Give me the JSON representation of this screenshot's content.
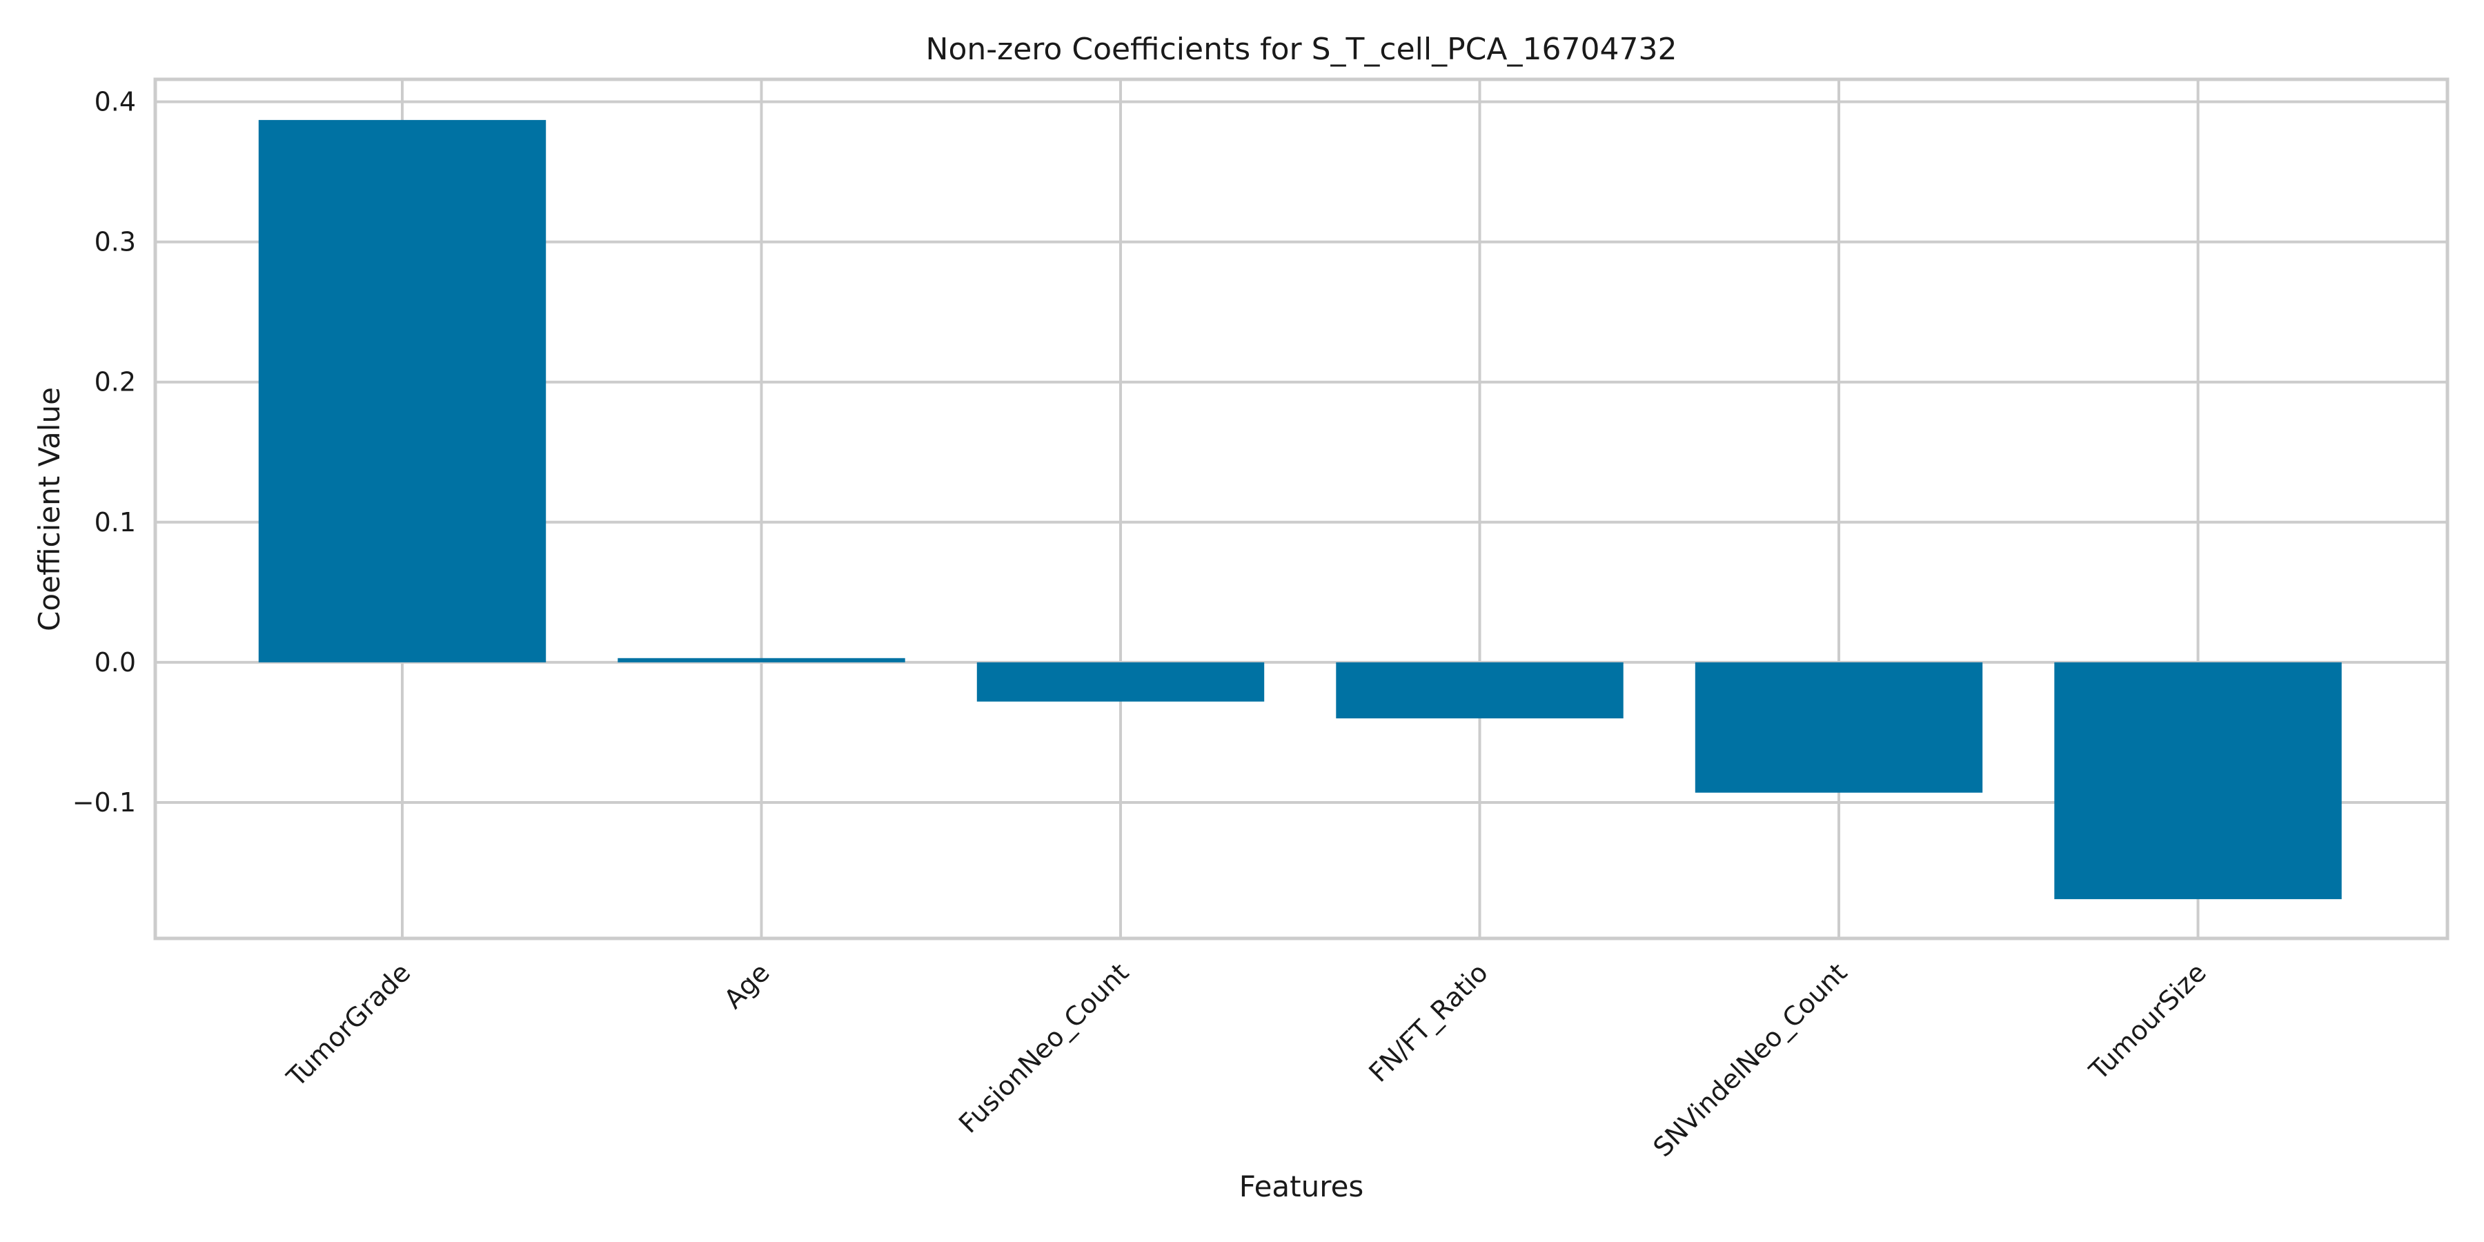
{
  "chart_data": {
    "type": "bar",
    "title": "Non-zero Coefficients for S_T_cell_PCA_16704732",
    "xlabel": "Features",
    "ylabel": "Coefficient Value",
    "categories": [
      "TumorGrade",
      "Age",
      "FusionNeo_Count",
      "FN/FT_Ratio",
      "SNVindelNeo_Count",
      "TumourSize"
    ],
    "values": [
      0.387,
      0.003,
      -0.028,
      -0.04,
      -0.093,
      -0.169
    ],
    "ylim": [
      -0.197,
      0.416
    ],
    "yticks": [
      -0.1,
      0.0,
      0.1,
      0.2,
      0.3,
      0.4
    ],
    "ytick_labels": [
      "−0.1",
      "0.0",
      "0.1",
      "0.2",
      "0.3",
      "0.4"
    ],
    "grid": true,
    "bar_color": "#0072a3",
    "grid_color": "#cccccc"
  }
}
